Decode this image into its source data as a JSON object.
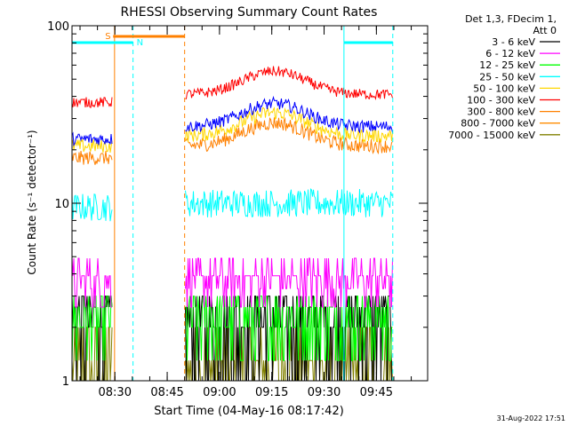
{
  "chart_data": {
    "type": "line",
    "title": "RHESSI Observing Summary Count Rates",
    "xlabel": "Start Time (04-May-16 08:17:42)",
    "ylabel": "Count Rate (s⁻¹ detector⁻¹)",
    "yscale": "log",
    "ylim": [
      1,
      100
    ],
    "xlim_minutes": [
      0,
      102
    ],
    "x_ticks": [
      {
        "t": 12.3,
        "label": "08:30"
      },
      {
        "t": 27.3,
        "label": "08:45"
      },
      {
        "t": 42.3,
        "label": "09:00"
      },
      {
        "t": 57.3,
        "label": "09:15"
      },
      {
        "t": 72.3,
        "label": "09:30"
      },
      {
        "t": 87.3,
        "label": "09:45"
      }
    ],
    "y_ticks": [
      {
        "v": 1,
        "label": "1"
      },
      {
        "v": 10,
        "label": "10"
      },
      {
        "v": 100,
        "label": "100"
      }
    ],
    "legend_header": [
      "Det 1,3, FDecim 1,",
      "Att 0"
    ],
    "series": [
      {
        "name": "3 - 6 keV",
        "color": "#000000",
        "segments": [
          [
            0,
            11.5,
            2.5
          ],
          [
            32.5,
            92,
            2.3
          ]
        ]
      },
      {
        "name": "6 - 12 keV",
        "color": "#ff00ff",
        "segments": [
          [
            0,
            11.5,
            3.4
          ],
          [
            32.5,
            92,
            3.9
          ]
        ]
      },
      {
        "name": "12 - 25 keV",
        "color": "#00ff00",
        "segments": [
          [
            0,
            11.5,
            2.5
          ],
          [
            32.5,
            92,
            3.0
          ]
        ]
      },
      {
        "name": "25 - 50 keV",
        "color": "#00ffff",
        "segments": [
          [
            0,
            11.5,
            9.5
          ],
          [
            32.5,
            92,
            10.0
          ]
        ]
      },
      {
        "name": "50 - 100 keV",
        "color": "#ffd700",
        "segments": [
          [
            0,
            11.5,
            21
          ],
          [
            32.5,
            92,
            24
          ]
        ]
      },
      {
        "name": "100 - 300 keV",
        "color": "#ff0000",
        "segments": [
          [
            0,
            11.5,
            37
          ],
          [
            32.5,
            92,
            41
          ]
        ]
      },
      {
        "name": "300 - 800 keV",
        "color": "#ff8000",
        "segments": [
          [
            0,
            11.5,
            18
          ],
          [
            32.5,
            92,
            21
          ]
        ]
      },
      {
        "name": "800 - 7000 keV",
        "color": "#ff8c00",
        "segments": [
          [
            0,
            11.5,
            18
          ],
          [
            32.5,
            92,
            21
          ]
        ]
      },
      {
        "name": "7000 - 15000 keV",
        "color": "#808000",
        "segments": [
          [
            0,
            11.5,
            1.6
          ],
          [
            32.5,
            92,
            1.6
          ]
        ]
      }
    ],
    "extra_blue_series": {
      "color": "#0000ff",
      "segments": [
        [
          0,
          11.5,
          23
        ],
        [
          32.5,
          92,
          27
        ]
      ]
    },
    "annotations": [
      {
        "label": "S",
        "color": "#ff8000",
        "t": 11.8
      },
      {
        "label": "N",
        "color": "#00ffff",
        "t": 17.5
      }
    ],
    "night_bars": [
      [
        0,
        17.5
      ],
      [
        78,
        92
      ]
    ],
    "saa_bar": [
      11.8,
      32.3
    ],
    "vlines": [
      {
        "t": 12.2,
        "color": "#ff8000",
        "style": "solid"
      },
      {
        "t": 17.5,
        "color": "#00ffff",
        "style": "dashed"
      },
      {
        "t": 32.3,
        "color": "#ff8000",
        "style": "dashed"
      },
      {
        "t": 78.0,
        "color": "#00ffff",
        "style": "solid"
      },
      {
        "t": 92.0,
        "color": "#00ffff",
        "style": "dashed"
      }
    ]
  },
  "footer_stamp": "31-Aug-2022 17:51"
}
